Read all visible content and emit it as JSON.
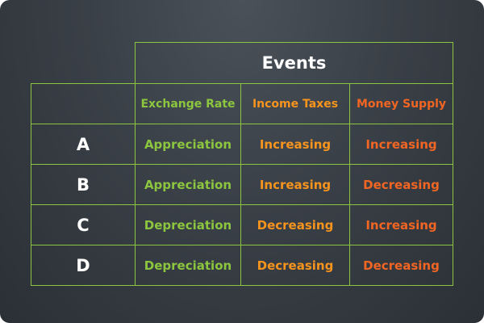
{
  "table": {
    "group_header": "Events",
    "columns": [
      {
        "label": "Exchange Rate",
        "color": "#8cc63f"
      },
      {
        "label": "Income Taxes",
        "color": "#f7941d"
      },
      {
        "label": "Money Supply",
        "color": "#f26522"
      }
    ],
    "rows": [
      {
        "label": "A",
        "values": [
          "Appreciation",
          "Increasing",
          "Increasing"
        ]
      },
      {
        "label": "B",
        "values": [
          "Appreciation",
          "Increasing",
          "Decreasing"
        ]
      },
      {
        "label": "C",
        "values": [
          "Depreciation",
          "Decreasing",
          "Increasing"
        ]
      },
      {
        "label": "D",
        "values": [
          "Depreciation",
          "Decreasing",
          "Decreasing"
        ]
      }
    ]
  },
  "colors": {
    "border": "#8cc63f",
    "background": "#3a4047",
    "label_text": "#ffffff"
  }
}
